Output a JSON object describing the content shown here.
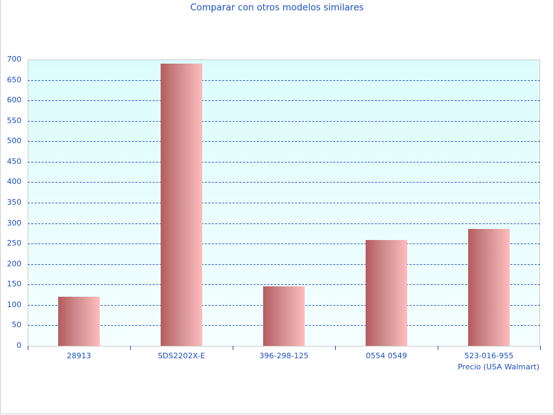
{
  "chart_data": {
    "type": "bar",
    "title": "Comparar con otros modelos similares",
    "categories": [
      "28913",
      "SDS2202X-E",
      "396-298-125",
      "0554 0549",
      "523-016-955"
    ],
    "series": [
      {
        "name": "Precio (USA Walmart)",
        "values": [
          120,
          690,
          145,
          259,
          286
        ]
      }
    ],
    "xlabel": "",
    "ylabel": "",
    "ylim": [
      0,
      700
    ],
    "yticks": [
      0,
      50,
      100,
      150,
      200,
      250,
      300,
      350,
      400,
      450,
      500,
      550,
      600,
      650,
      700
    ],
    "grid": true,
    "legend_position": "bottom-right",
    "colors": {
      "bar_dark": "#b55b5e",
      "bar_light": "#ffbcbc",
      "text": "#1f4fbf",
      "grid": "#3a5fbf",
      "plot_bg_top": "#dcfcfc"
    }
  }
}
